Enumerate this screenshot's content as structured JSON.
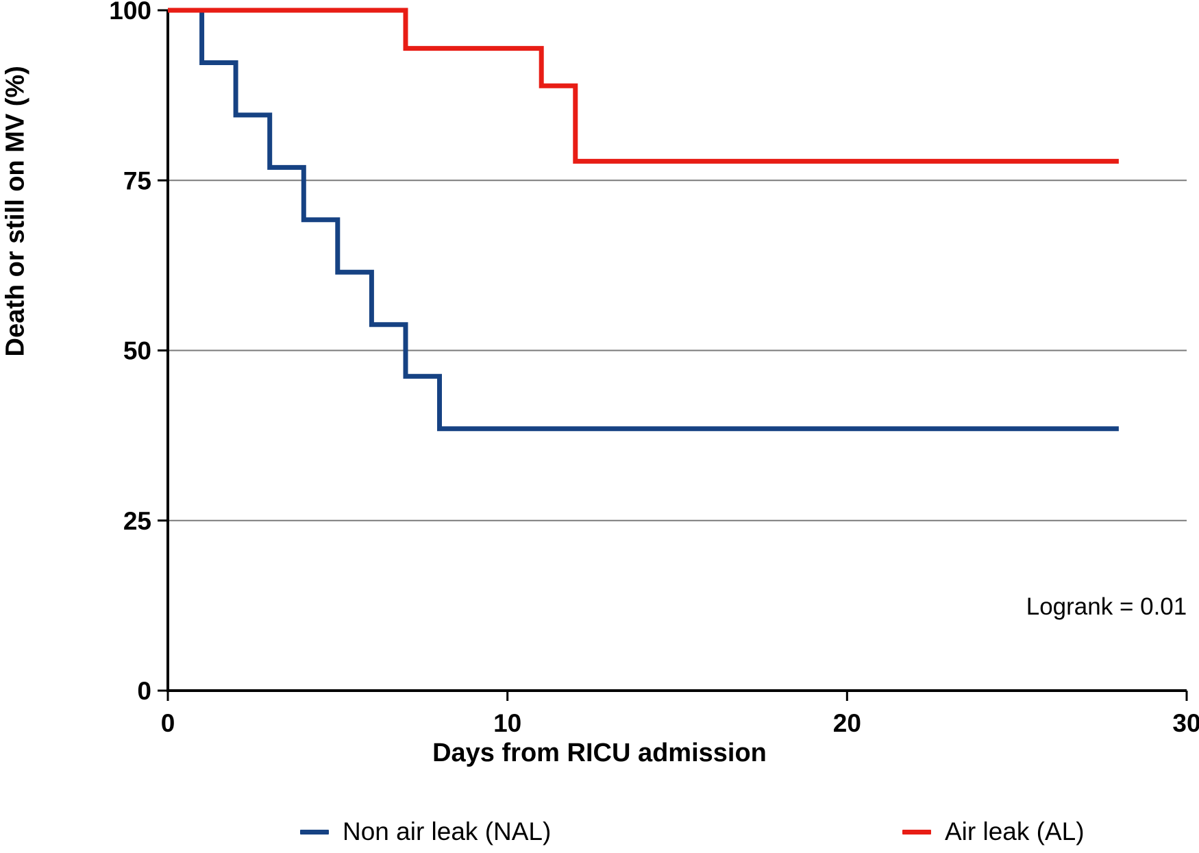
{
  "figure": {
    "background": "#ffffff",
    "annotation": "Logrank = 0.01",
    "x_axis": {
      "label": "Days from RICU admission",
      "ticks": [
        0,
        10,
        20,
        30
      ],
      "range": [
        0,
        30
      ]
    },
    "y_axis": {
      "label": "Death or still on MV (%)",
      "ticks": [
        0,
        25,
        50,
        75,
        100
      ],
      "gridlines": [
        25,
        50,
        75
      ],
      "range": [
        0,
        100
      ]
    },
    "legend": [
      {
        "label": "Non air leak (NAL)",
        "color": "#164283"
      },
      {
        "label": "Air leak (AL)",
        "color": "#e81d15"
      }
    ],
    "colors": {
      "nal_line": "#164283",
      "al_line": "#e81d15",
      "axis": "#000000",
      "gridline": "#7a7a7a"
    }
  },
  "chart_data": {
    "type": "line",
    "subtype": "kaplan-meier-step",
    "title": "",
    "xlabel": "Days from RICU admission",
    "ylabel": "Death or still on MV (%)",
    "xlim": [
      0,
      30
    ],
    "ylim": [
      0,
      100
    ],
    "grid": "horizontal-at-25-50-75",
    "legend_position": "bottom",
    "annotations": [
      {
        "text": "Logrank = 0.01",
        "x": 27.6,
        "y": 12.4
      }
    ],
    "series": [
      {
        "name": "Non air leak (NAL)",
        "color": "#164283",
        "step_events": [
          {
            "day": 1,
            "to_percent": 92.3
          },
          {
            "day": 2,
            "to_percent": 84.6
          },
          {
            "day": 3,
            "to_percent": 76.9
          },
          {
            "day": 4,
            "to_percent": 69.2
          },
          {
            "day": 5,
            "to_percent": 61.5
          },
          {
            "day": 6,
            "to_percent": 53.8
          },
          {
            "day": 7,
            "to_percent": 46.2
          },
          {
            "day": 8,
            "to_percent": 38.5
          }
        ],
        "points": [
          [
            0,
            100
          ],
          [
            1,
            100
          ],
          [
            1,
            92.3
          ],
          [
            2,
            92.3
          ],
          [
            2,
            84.6
          ],
          [
            3,
            84.6
          ],
          [
            3,
            76.9
          ],
          [
            4,
            76.9
          ],
          [
            4,
            69.2
          ],
          [
            5,
            69.2
          ],
          [
            5,
            61.5
          ],
          [
            6,
            61.5
          ],
          [
            6,
            53.8
          ],
          [
            7,
            53.8
          ],
          [
            7,
            46.2
          ],
          [
            8,
            46.2
          ],
          [
            8,
            38.5
          ],
          [
            28,
            38.5
          ]
        ]
      },
      {
        "name": "Air leak (AL)",
        "color": "#e81d15",
        "step_events": [
          {
            "day": 7,
            "to_percent": 94.4
          },
          {
            "day": 11,
            "to_percent": 88.9
          },
          {
            "day": 12,
            "to_percent": 77.8
          }
        ],
        "points": [
          [
            0,
            100
          ],
          [
            7,
            100
          ],
          [
            7,
            94.4
          ],
          [
            11,
            94.4
          ],
          [
            11,
            88.9
          ],
          [
            12,
            88.9
          ],
          [
            12,
            77.8
          ],
          [
            28,
            77.8
          ]
        ]
      }
    ]
  }
}
